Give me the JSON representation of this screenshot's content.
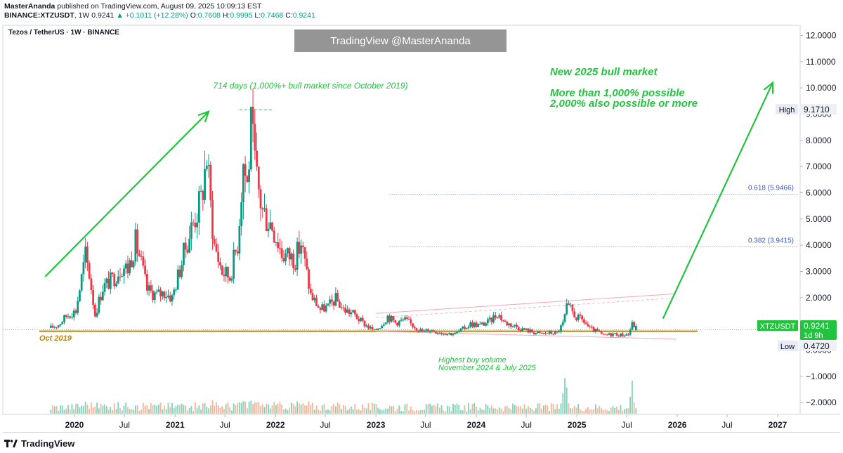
{
  "header": {
    "publisher": "MasterAnanda",
    "published_text": "published on TradingView.com, August 09, 2025 10:09:13 EST",
    "symbol": "BINANCE:XTZUSDT",
    "interval": "1W",
    "price": "0.9241",
    "change_arrow": "▲",
    "change": "+0.1011 (+12.28%)",
    "o_label": "O:",
    "o": "0.7608",
    "h_label": "H:",
    "h": "0.9995",
    "l_label": "L:",
    "l": "0.7468",
    "c_label": "C:",
    "c": "0.9241"
  },
  "watermark": "TradingView @MasterAnanda",
  "footer": {
    "brand": "TradingView"
  },
  "chart_data": {
    "type": "candlestick",
    "title": "Tezos / TetherUS · 1W · BINANCE",
    "symbol_label": "XTZUSDT",
    "last_price": "0.9241",
    "countdown": "1d 9h",
    "high_label": "High",
    "high_value": "9.1710",
    "low_label": "Low",
    "low_value": "0.4720",
    "y_ticks": [
      "12.0000",
      "11.0000",
      "10.0000",
      "9.0000",
      "8.0000",
      "7.0000",
      "6.0000",
      "5.0000",
      "4.0000",
      "3.0000",
      "2.0000",
      "1.0000",
      "0.0000",
      "−1.0000",
      "−2.0000"
    ],
    "x_ticks": [
      {
        "label": "2020",
        "bold": true,
        "date": "2020-01-01"
      },
      {
        "label": "Jul",
        "bold": false,
        "date": "2020-07-01"
      },
      {
        "label": "2021",
        "bold": true,
        "date": "2021-01-01"
      },
      {
        "label": "Jul",
        "bold": false,
        "date": "2021-07-01"
      },
      {
        "label": "2022",
        "bold": true,
        "date": "2022-01-01"
      },
      {
        "label": "Jul",
        "bold": false,
        "date": "2022-07-01"
      },
      {
        "label": "2023",
        "bold": true,
        "date": "2023-01-01"
      },
      {
        "label": "Jul",
        "bold": false,
        "date": "2023-07-01"
      },
      {
        "label": "2024",
        "bold": true,
        "date": "2024-01-01"
      },
      {
        "label": "Jul",
        "bold": false,
        "date": "2024-07-01"
      },
      {
        "label": "2025",
        "bold": true,
        "date": "2025-01-01"
      },
      {
        "label": "Jul",
        "bold": false,
        "date": "2025-07-01"
      },
      {
        "label": "2026",
        "bold": true,
        "date": "2026-01-01"
      },
      {
        "label": "Jul",
        "bold": false,
        "date": "2026-07-01"
      },
      {
        "label": "2027",
        "bold": true,
        "date": "2027-01-01"
      }
    ],
    "price_path": [
      [
        "2019-10-07",
        0.85
      ],
      [
        "2019-11-04",
        0.97
      ],
      [
        "2019-12-02",
        1.3
      ],
      [
        "2020-01-06",
        1.5
      ],
      [
        "2020-02-10",
        3.6
      ],
      [
        "2020-02-24",
        2.9
      ],
      [
        "2020-03-16",
        1.35
      ],
      [
        "2020-04-13",
        2.4
      ],
      [
        "2020-05-18",
        2.7
      ],
      [
        "2020-06-22",
        3.2
      ],
      [
        "2020-07-13",
        3.1
      ],
      [
        "2020-08-10",
        4.1
      ],
      [
        "2020-08-24",
        3.6
      ],
      [
        "2020-09-21",
        2.3
      ],
      [
        "2020-10-26",
        2.1
      ],
      [
        "2020-11-23",
        2.2
      ],
      [
        "2020-12-21",
        2.0
      ],
      [
        "2021-01-18",
        3.1
      ],
      [
        "2021-02-15",
        4.2
      ],
      [
        "2021-03-15",
        5.1
      ],
      [
        "2021-04-05",
        5.7
      ],
      [
        "2021-04-26",
        7.4
      ],
      [
        "2021-05-10",
        5.5
      ],
      [
        "2021-05-24",
        4.0
      ],
      [
        "2021-06-21",
        3.0
      ],
      [
        "2021-07-19",
        2.8
      ],
      [
        "2021-08-16",
        4.1
      ],
      [
        "2021-09-06",
        7.2
      ],
      [
        "2021-09-20",
        6.3
      ],
      [
        "2021-10-04",
        8.4
      ],
      [
        "2021-10-25",
        6.4
      ],
      [
        "2021-11-15",
        5.3
      ],
      [
        "2021-12-20",
        4.8
      ],
      [
        "2022-01-24",
        3.7
      ],
      [
        "2022-02-14",
        3.6
      ],
      [
        "2022-03-14",
        3.5
      ],
      [
        "2022-04-04",
        4.1
      ],
      [
        "2022-05-09",
        2.1
      ],
      [
        "2022-06-13",
        1.55
      ],
      [
        "2022-07-11",
        1.65
      ],
      [
        "2022-08-08",
        1.95
      ],
      [
        "2022-09-05",
        1.55
      ],
      [
        "2022-10-10",
        1.4
      ],
      [
        "2022-11-07",
        1.1
      ],
      [
        "2022-12-26",
        0.72
      ],
      [
        "2023-01-23",
        1.0
      ],
      [
        "2023-02-13",
        1.3
      ],
      [
        "2023-03-13",
        1.05
      ],
      [
        "2023-04-17",
        1.15
      ],
      [
        "2023-05-22",
        0.9
      ],
      [
        "2023-06-19",
        0.7
      ],
      [
        "2023-07-17",
        0.78
      ],
      [
        "2023-08-21",
        0.67
      ],
      [
        "2023-10-16",
        0.62
      ],
      [
        "2023-11-13",
        0.8
      ],
      [
        "2023-12-11",
        1.0
      ],
      [
        "2024-01-15",
        0.95
      ],
      [
        "2024-02-19",
        1.1
      ],
      [
        "2024-03-18",
        1.4
      ],
      [
        "2024-04-15",
        1.05
      ],
      [
        "2024-05-13",
        0.95
      ],
      [
        "2024-06-17",
        0.8
      ],
      [
        "2024-07-15",
        0.72
      ],
      [
        "2024-08-19",
        0.62
      ],
      [
        "2024-09-16",
        0.65
      ],
      [
        "2024-10-21",
        0.65
      ],
      [
        "2024-11-11",
        1.0
      ],
      [
        "2024-11-25",
        1.6
      ],
      [
        "2024-12-09",
        1.55
      ],
      [
        "2024-12-30",
        1.25
      ],
      [
        "2025-01-27",
        1.1
      ],
      [
        "2025-02-17",
        0.8
      ],
      [
        "2025-03-17",
        0.7
      ],
      [
        "2025-04-07",
        0.55
      ],
      [
        "2025-05-12",
        0.62
      ],
      [
        "2025-06-09",
        0.58
      ],
      [
        "2025-07-07",
        0.6
      ],
      [
        "2025-07-21",
        0.98
      ],
      [
        "2025-08-04",
        0.92
      ]
    ],
    "volume_spikes": [
      [
        "2024-11-11",
        0.55
      ],
      [
        "2024-11-18",
        0.95
      ],
      [
        "2024-11-25",
        0.7
      ],
      [
        "2025-07-14",
        0.45
      ],
      [
        "2025-07-21",
        0.88
      ],
      [
        "2025-07-28",
        0.3
      ]
    ],
    "volume_top_value": -1.0,
    "fib_levels": [
      {
        "label": "0.618 (5.9466)",
        "value": 5.9466,
        "from": "2023-02-20"
      },
      {
        "label": "0.382 (3.9415)",
        "value": 3.9415,
        "from": "2023-02-20"
      }
    ],
    "support_level": 0.72,
    "peak_level": 9.171,
    "peak_line": {
      "from": "2021-08-23",
      "to": "2021-12-27"
    },
    "oct2019_label": "Oct 2019",
    "annotations": {
      "days_text": "714 days (1,000%+ bull market since October 2019)",
      "new_market_1": "New 2025 bull market",
      "new_market_2": "More than 1,000% possible",
      "new_market_3": "2,000% also possible or more",
      "volume_note_1": "Highest buy volume",
      "volume_note_2": "November 2024 & July 2025"
    },
    "arrow_up_1": {
      "from": [
        "2019-09-16",
        2.8
      ],
      "to": [
        "2021-05-03",
        9.1
      ]
    },
    "arrow_up_2": {
      "from": [
        "2025-11-10",
        1.2
      ],
      "to": [
        "2026-12-14",
        10.2
      ]
    },
    "channel_upper": {
      "from": [
        "2023-01-02",
        1.4
      ],
      "to": [
        "2025-12-29",
        2.15
      ]
    },
    "channel_lower": {
      "from": [
        "2023-01-02",
        0.72
      ],
      "to": [
        "2025-12-29",
        0.42
      ]
    },
    "colors": {
      "up": "#089981",
      "down": "#f23645",
      "green_annotation": "#22c33f",
      "support": "#b8860b",
      "fib": "#3b5cc4",
      "volume_up": "#7ed3ba",
      "volume_down": "#f2b79a",
      "price_label_bg": "#22c33f"
    }
  }
}
